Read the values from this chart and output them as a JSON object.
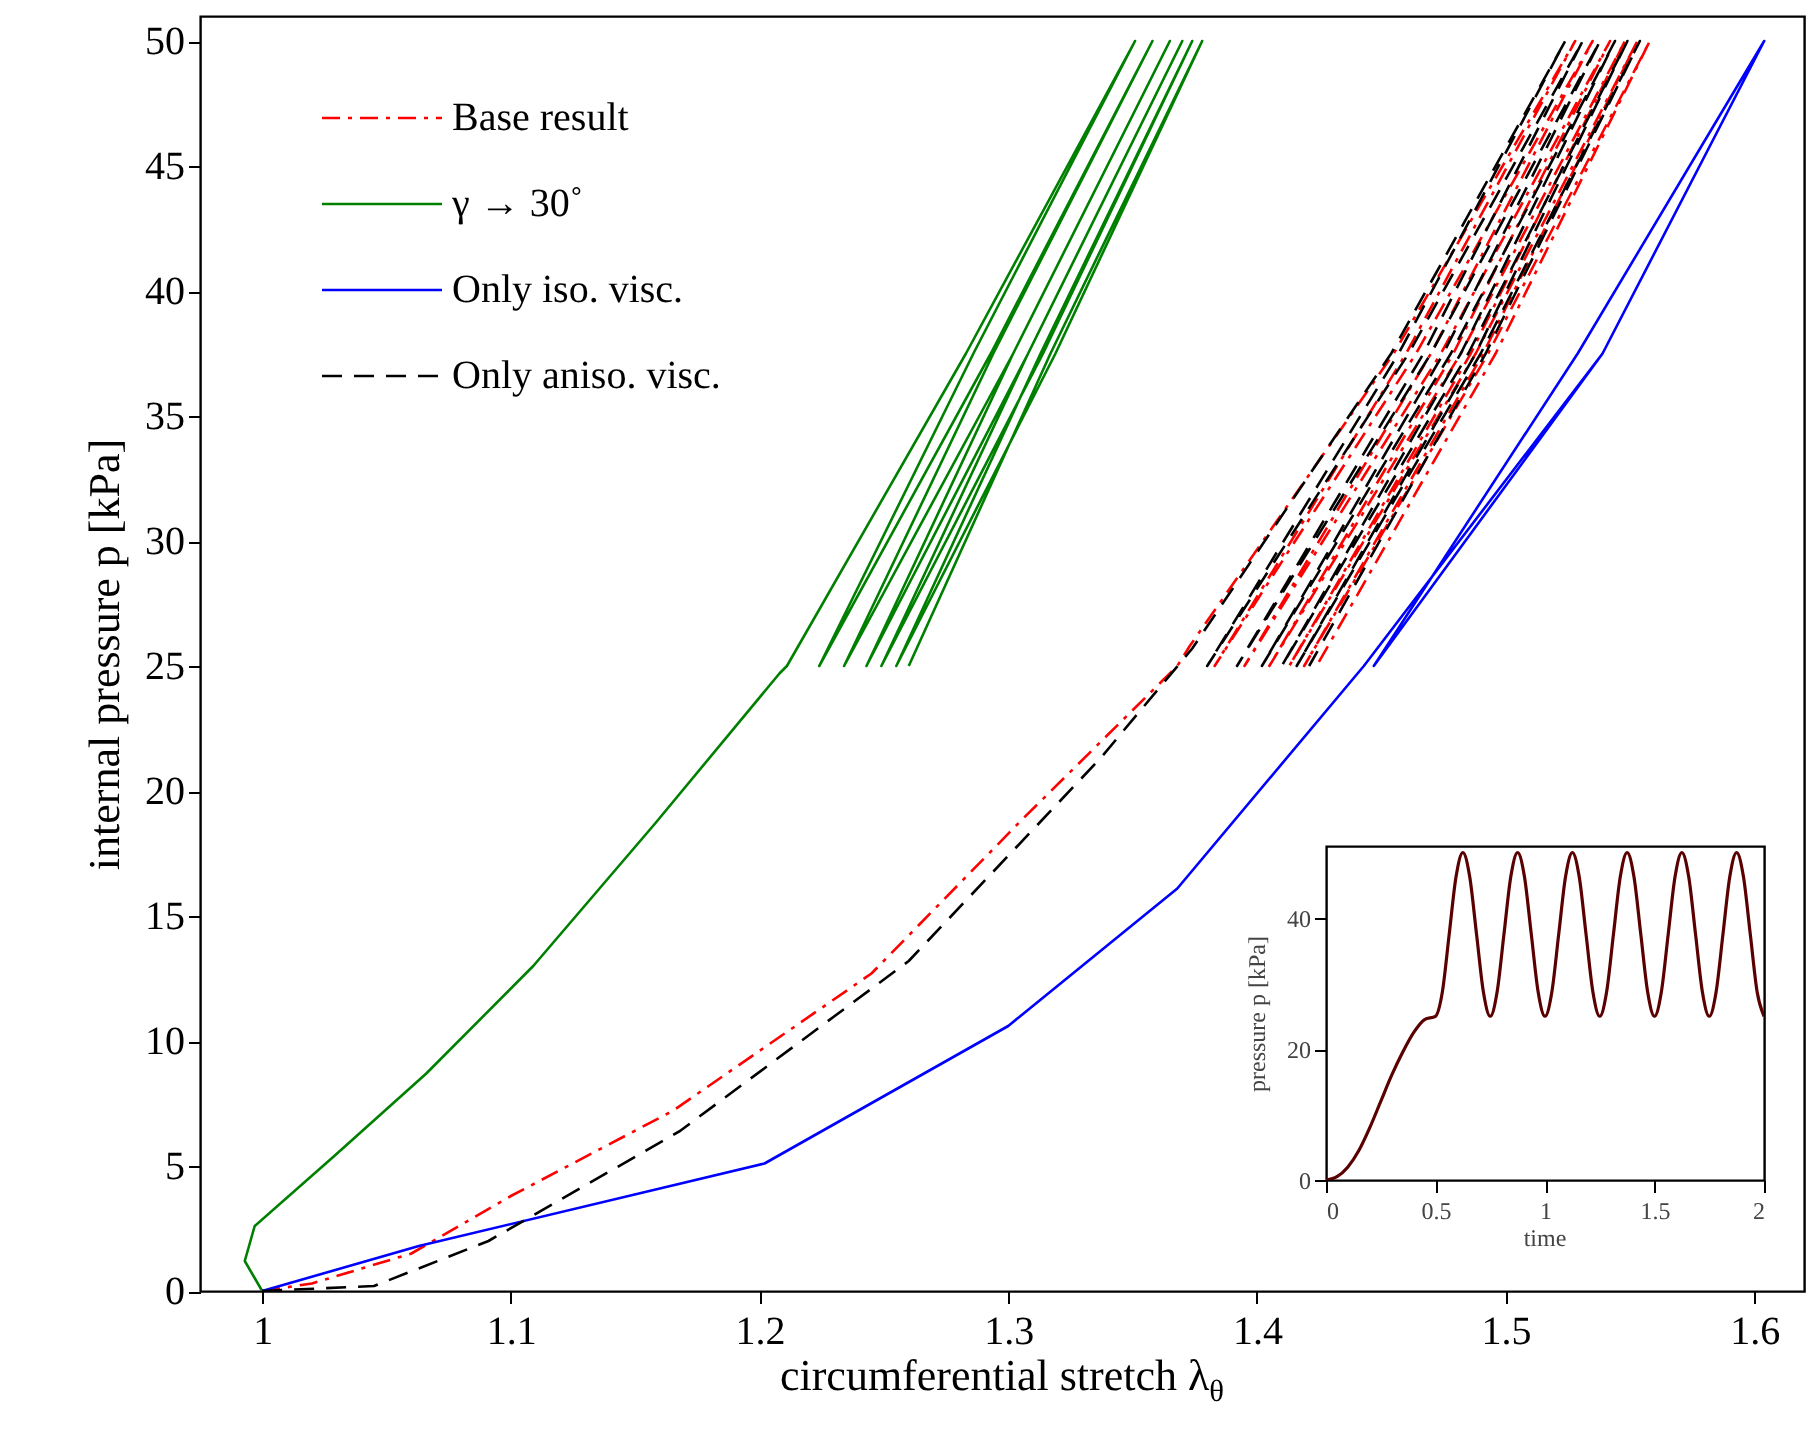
{
  "chart_data": [
    {
      "type": "line",
      "xlabel": "circumferential stretch λ$_{θ}$",
      "ylabel": "internal pressure p [kPa]",
      "xlim": [
        0.975,
        1.62
      ],
      "ylim": [
        0,
        51
      ],
      "xticks": [
        1,
        1.1,
        1.2,
        1.3,
        1.4,
        1.5,
        1.6
      ],
      "yticks": [
        0,
        5,
        10,
        15,
        20,
        25,
        30,
        35,
        40,
        45,
        50
      ],
      "legend": "top left",
      "series": [
        {
          "name": "Base result",
          "color": "#ff0000",
          "line_style": "dashdot",
          "x": [
            1,
            1.02,
            1.06,
            1.1,
            1.165,
            1.245,
            1.306,
            1.368,
            1.373,
            1.455,
            1.528,
            1.46,
            1.383,
            1.464,
            1.535,
            1.47,
            1.395,
            1.474,
            1.542,
            1.479,
            1.405,
            1.482,
            1.548,
            1.486,
            1.413,
            1.488,
            1.553,
            1.491,
            1.419,
            1.493,
            1.558,
            1.496,
            1.424
          ],
          "values": [
            0,
            0.3,
            1.5,
            3.8,
            7.2,
            12.7,
            18.9,
            25,
            25.8,
            37.5,
            50,
            37.5,
            25,
            37.5,
            50,
            37.5,
            25,
            37.5,
            50,
            37.5,
            25,
            37.5,
            50,
            37.5,
            25,
            37.5,
            50,
            37.5,
            25,
            37.5,
            50,
            37.5,
            25
          ]
        },
        {
          "name": "γ → 30˚",
          "color": "#008000",
          "line_style": "solid",
          "x": [
            1,
            0.993,
            0.997,
            1.029,
            1.066,
            1.109,
            1.158,
            1.208,
            1.211,
            1.283,
            1.351,
            1.286,
            1.224,
            1.293,
            1.358,
            1.294,
            1.234,
            1.302,
            1.365,
            1.302,
            1.243,
            1.308,
            1.37,
            1.308,
            1.249,
            1.314,
            1.374,
            1.313,
            1.255,
            1.319,
            1.378,
            1.317,
            1.26
          ],
          "values": [
            0,
            1.2,
            2.6,
            5.4,
            8.7,
            13,
            18.7,
            24.7,
            25,
            37.5,
            50,
            37.5,
            25,
            37.5,
            50,
            37.5,
            25,
            37.5,
            50,
            37.5,
            25,
            37.5,
            50,
            37.5,
            25,
            37.5,
            50,
            37.5,
            25,
            37.5,
            50,
            37.5,
            25
          ]
        },
        {
          "name": "Only iso. visc.",
          "color": "#0000ff",
          "line_style": "solid",
          "x": [
            1,
            1.063,
            1.202,
            1.3,
            1.368,
            1.443,
            1.539,
            1.604,
            1.529,
            1.447,
            1.539,
            1.604,
            1.529,
            1.447,
            1.539,
            1.604,
            1.529,
            1.447,
            1.539,
            1.604,
            1.529,
            1.447,
            1.539,
            1.604,
            1.529,
            1.447,
            1.539,
            1.604,
            1.529,
            1.447
          ],
          "values": [
            0,
            1.8,
            5.1,
            10.6,
            16.1,
            25,
            37.5,
            50,
            37.5,
            25,
            37.5,
            50,
            37.5,
            25,
            37.5,
            50,
            37.5,
            25,
            37.5,
            50,
            37.5,
            25,
            37.5,
            50,
            37.5,
            25,
            37.5,
            50,
            37.5,
            25
          ]
        },
        {
          "name": "Only aniso. visc.",
          "color": "#000000",
          "line_style": "dashed",
          "x": [
            1,
            1.045,
            1.091,
            1.168,
            1.26,
            1.337,
            1.374,
            1.454,
            1.524,
            1.457,
            1.38,
            1.461,
            1.531,
            1.467,
            1.392,
            1.47,
            1.538,
            1.475,
            1.402,
            1.478,
            1.544,
            1.482,
            1.41,
            1.485,
            1.549,
            1.488,
            1.416,
            1.49,
            1.554,
            1.492,
            1.421
          ],
          "values": [
            0,
            0.2,
            2,
            6.4,
            13.2,
            21.3,
            25.7,
            37.5,
            50,
            37.5,
            25,
            37.5,
            50,
            37.5,
            25,
            37.5,
            50,
            37.5,
            25,
            37.5,
            50,
            37.5,
            25,
            37.5,
            50,
            37.5,
            25,
            37.5,
            50,
            37.5,
            25
          ]
        }
      ]
    },
    {
      "type": "line",
      "xlabel": "time",
      "ylabel": "pressure p [kPa]",
      "xlim": [
        0,
        2
      ],
      "ylim": [
        0,
        51
      ],
      "xticks": [
        0,
        0.5,
        1,
        1.5,
        2
      ],
      "yticks": [
        0,
        20,
        40
      ],
      "series": [
        {
          "color": "#5a0000",
          "line_style": "solid",
          "x": [
            0,
            0.05,
            0.1,
            0.15,
            0.2,
            0.25,
            0.3,
            0.35,
            0.4,
            0.45,
            0.5,
            0.53125,
            0.5625,
            0.59375,
            0.625,
            0.65625,
            0.6875,
            0.71875,
            0.75,
            0.78125,
            0.8125,
            0.84375,
            0.875,
            0.90625,
            0.9375,
            0.96875,
            1,
            1.03125,
            1.0625,
            1.09375,
            1.125,
            1.15625,
            1.1875,
            1.21875,
            1.25,
            1.28125,
            1.3125,
            1.34375,
            1.375,
            1.40625,
            1.4375,
            1.46875,
            1.5,
            1.53125,
            1.5625,
            1.59375,
            1.625,
            1.65625,
            1.6875,
            1.71875,
            1.75,
            1.78125,
            1.8125,
            1.84375,
            1.875,
            1.90625,
            1.9375,
            1.96875,
            2
          ],
          "values": [
            0,
            0.5,
            2,
            4.5,
            8,
            12,
            16,
            19.5,
            22.5,
            24.5,
            25,
            28.7,
            37.5,
            46.3,
            50,
            46.3,
            37.5,
            28.7,
            25,
            28.7,
            37.5,
            46.3,
            50,
            46.3,
            37.5,
            28.7,
            25,
            28.7,
            37.5,
            46.3,
            50,
            46.3,
            37.5,
            28.7,
            25,
            28.7,
            37.5,
            46.3,
            50,
            46.3,
            37.5,
            28.7,
            25,
            28.7,
            37.5,
            46.3,
            50,
            46.3,
            37.5,
            28.7,
            25,
            28.7,
            37.5,
            46.3,
            50,
            46.3,
            37.5,
            28.7,
            25
          ]
        }
      ]
    }
  ]
}
